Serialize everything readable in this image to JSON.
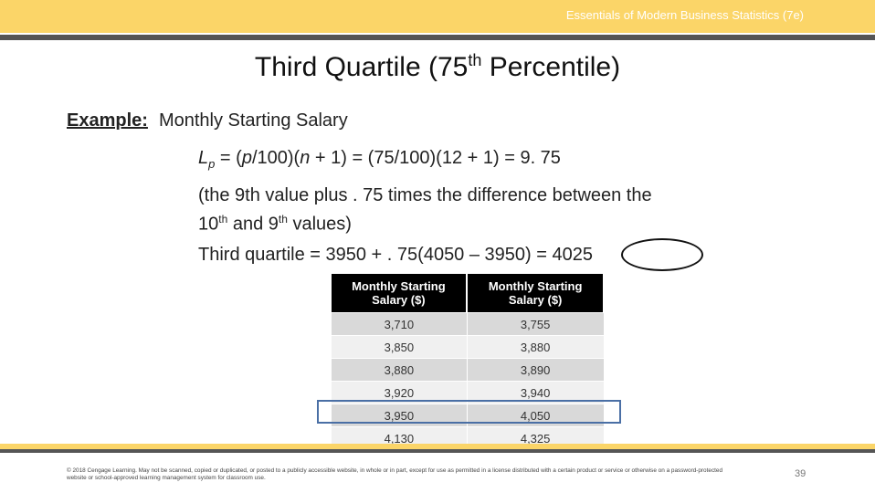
{
  "header": {
    "course": "Essentials of Modern Business Statistics (7e)"
  },
  "title": {
    "before": "Third Quartile (75",
    "sup": "th",
    "after": " Percentile)"
  },
  "example": {
    "label": "Example:",
    "topic": "Monthly Starting Salary"
  },
  "formula": {
    "l": "L",
    "sub": "p",
    "a": " = (",
    "p": "p",
    "b": "/100)(",
    "n": "n",
    "c": " + 1) = (75/100)(12 + 1) = 9. 75"
  },
  "explain": {
    "line1": "(the 9th value plus . 75 times the difference between the",
    "a": "10",
    "sup1": "th",
    "b": " and 9",
    "sup2": "th",
    "c": "  values)"
  },
  "result": "Third quartile =  3950 + . 75(4050 – 3950) = 4025",
  "table": {
    "headers": [
      "Monthly Starting Salary ($)",
      "Monthly Starting Salary ($)"
    ],
    "rows": [
      [
        "3,710",
        "3,755"
      ],
      [
        "3,850",
        "3,880"
      ],
      [
        "3,880",
        "3,890"
      ],
      [
        "3,920",
        "3,940"
      ],
      [
        "3,950",
        "4,050"
      ],
      [
        "4,130",
        "4,325"
      ]
    ]
  },
  "footer": {
    "copyright": "© 2018 Cengage Learning. May not be scanned, copied or duplicated, or posted to a publicly accessible website, in whole or in part, except for use as permitted in a license distributed with a certain product or service or otherwise on a password-protected website or school-approved learning management system for classroom use.",
    "page": "39"
  }
}
